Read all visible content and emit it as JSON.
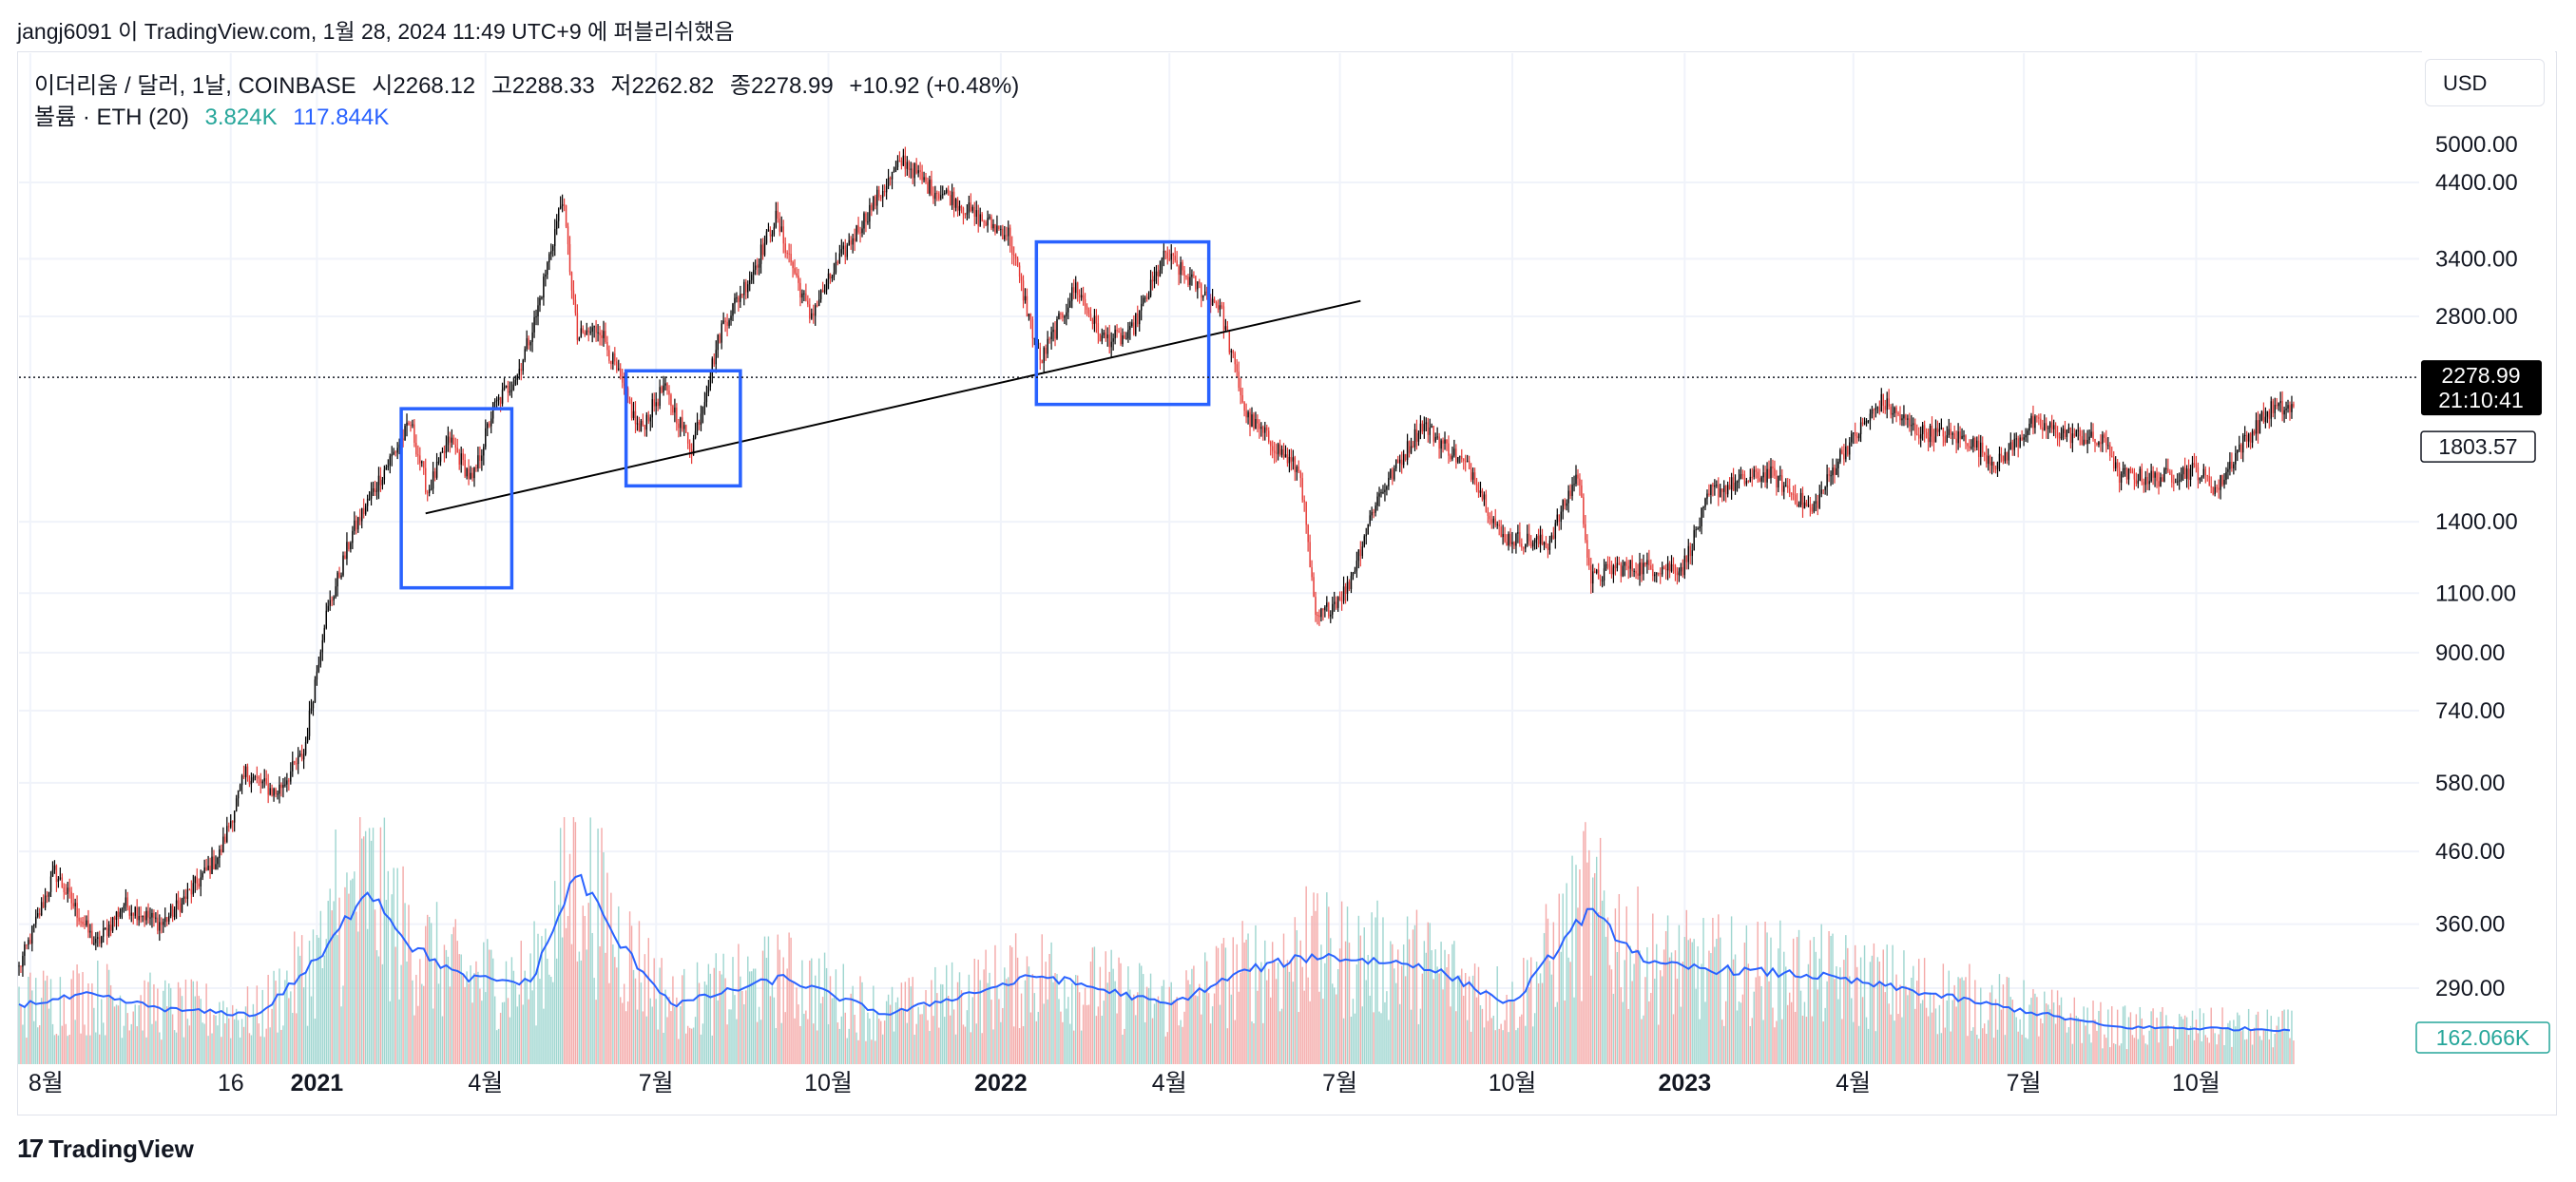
{
  "header": {
    "text": "jangj6091 이 TradingView.com, 1월 28, 2024 11:49 UTC+9 에 퍼블리쉬했음"
  },
  "legend": {
    "symbol": "이더리움 / 달러, 1날, COINBASE",
    "open_label": "시",
    "open": "2268.12",
    "high_label": "고",
    "high": "2288.33",
    "low_label": "저",
    "low": "2262.82",
    "close_label": "종",
    "close": "2278.99",
    "change": "+10.92 (+0.48%)",
    "volume_label": "볼륨 · ETH (20)",
    "volume": "3.824K",
    "volume_ma": "117.844K"
  },
  "currency_button": "USD",
  "footer": {
    "brand": "TradingView",
    "logo_icon": "tradingview-logo-icon"
  },
  "price_badge": {
    "value": "2278.99",
    "countdown": "21:10:41"
  },
  "marker_badge": {
    "value": "1803.57"
  },
  "volume_badge": {
    "value": "162.066K"
  },
  "colors": {
    "up": "#26a69a",
    "down": "#ef5350",
    "candle_up": "#000000",
    "candle_down": "#e53935",
    "volume_up": "#9fd6d0",
    "volume_down": "#f4aaa9",
    "ma": "#2962ff",
    "box": "#2962ff",
    "trendline": "#000000"
  },
  "chart_data": {
    "type": "candlestick",
    "symbol": "ETH/USD",
    "scale": "log",
    "y_ticks": [
      4400,
      3400,
      2800,
      1400,
      1100,
      900,
      740,
      580,
      460,
      360,
      290
    ],
    "y_tick_labels": [
      "4400.00",
      "3400.00",
      "2800.00",
      "1400.00",
      "1100.00",
      "900.00",
      "740.00",
      "580.00",
      "460.00",
      "360.00",
      "290.00"
    ],
    "x_ticks": [
      {
        "label": "8월",
        "date": "2020-08-01",
        "bold": false
      },
      {
        "label": "16",
        "date": "2020-11-16",
        "bold": false
      },
      {
        "label": "2021",
        "date": "2021-01-01",
        "bold": true
      },
      {
        "label": "4월",
        "date": "2021-04-01",
        "bold": false
      },
      {
        "label": "7월",
        "date": "2021-07-01",
        "bold": false
      },
      {
        "label": "10월",
        "date": "2021-10-01",
        "bold": false
      },
      {
        "label": "2022",
        "date": "2022-01-01",
        "bold": true
      },
      {
        "label": "4월",
        "date": "2022-04-01",
        "bold": false
      },
      {
        "label": "7월",
        "date": "2022-07-01",
        "bold": false
      },
      {
        "label": "10월",
        "date": "2022-10-01",
        "bold": false
      },
      {
        "label": "2023",
        "date": "2023-01-01",
        "bold": true
      },
      {
        "label": "4월",
        "date": "2023-04-01",
        "bold": false
      },
      {
        "label": "7월",
        "date": "2023-07-01",
        "bold": false
      },
      {
        "label": "10월",
        "date": "2023-10-01",
        "bold": false
      }
    ],
    "price_path": [
      [
        "2020-07-26",
        310
      ],
      [
        "2020-08-14",
        430
      ],
      [
        "2020-09-05",
        335
      ],
      [
        "2020-09-20",
        385
      ],
      [
        "2020-10-10",
        360
      ],
      [
        "2020-10-25",
        400
      ],
      [
        "2020-11-10",
        455
      ],
      [
        "2020-11-24",
        600
      ],
      [
        "2020-12-10",
        560
      ],
      [
        "2020-12-25",
        640
      ],
      [
        "2021-01-05",
        1000
      ],
      [
        "2021-01-12",
        1150
      ],
      [
        "2021-01-20",
        1350
      ],
      [
        "2021-02-05",
        1650
      ],
      [
        "2021-02-20",
        1950
      ],
      [
        "2021-03-01",
        1550
      ],
      [
        "2021-03-13",
        1850
      ],
      [
        "2021-03-25",
        1600
      ],
      [
        "2021-04-05",
        2050
      ],
      [
        "2021-04-18",
        2300
      ],
      [
        "2021-04-28",
        2800
      ],
      [
        "2021-05-12",
        4200
      ],
      [
        "2021-05-20",
        2600
      ],
      [
        "2021-06-01",
        2700
      ],
      [
        "2021-06-22",
        1900
      ],
      [
        "2021-07-05",
        2200
      ],
      [
        "2021-07-20",
        1800
      ],
      [
        "2021-08-05",
        2700
      ],
      [
        "2021-08-20",
        3200
      ],
      [
        "2021-09-03",
        3900
      ],
      [
        "2021-09-21",
        2800
      ],
      [
        "2021-10-10",
        3500
      ],
      [
        "2021-10-25",
        4100
      ],
      [
        "2021-11-10",
        4750
      ],
      [
        "2021-11-25",
        4300
      ],
      [
        "2021-12-05",
        4200
      ],
      [
        "2021-12-20",
        3900
      ],
      [
        "2022-01-05",
        3700
      ],
      [
        "2022-01-22",
        2400
      ],
      [
        "2022-02-10",
        3100
      ],
      [
        "2022-02-24",
        2600
      ],
      [
        "2022-03-10",
        2600
      ],
      [
        "2022-03-30",
        3450
      ],
      [
        "2022-04-10",
        3200
      ],
      [
        "2022-04-28",
        2900
      ],
      [
        "2022-05-12",
        2000
      ],
      [
        "2022-05-28",
        1800
      ],
      [
        "2022-06-10",
        1650
      ],
      [
        "2022-06-18",
        1000
      ],
      [
        "2022-07-05",
        1120
      ],
      [
        "2022-07-20",
        1500
      ],
      [
        "2022-08-14",
        1950
      ],
      [
        "2022-09-10",
        1650
      ],
      [
        "2022-09-25",
        1330
      ],
      [
        "2022-10-20",
        1300
      ],
      [
        "2022-11-05",
        1650
      ],
      [
        "2022-11-12",
        1150
      ],
      [
        "2022-11-25",
        1200
      ],
      [
        "2022-12-15",
        1200
      ],
      [
        "2022-12-31",
        1200
      ],
      [
        "2023-01-15",
        1550
      ],
      [
        "2023-02-15",
        1650
      ],
      [
        "2023-03-10",
        1450
      ],
      [
        "2023-03-25",
        1750
      ],
      [
        "2023-04-16",
        2100
      ],
      [
        "2023-05-05",
        1900
      ],
      [
        "2023-06-01",
        1850
      ],
      [
        "2023-06-17",
        1700
      ],
      [
        "2023-07-05",
        1950
      ],
      [
        "2023-07-25",
        1880
      ],
      [
        "2023-08-15",
        1820
      ],
      [
        "2023-08-20",
        1640
      ],
      [
        "2023-09-10",
        1620
      ],
      [
        "2023-10-01",
        1670
      ],
      [
        "2023-10-12",
        1560
      ],
      [
        "2023-10-24",
        1800
      ],
      [
        "2023-11-10",
        2050
      ],
      [
        "2023-11-22",
        2050
      ]
    ],
    "current_price": 2278.99,
    "marker_price": 1803.57,
    "trendline": [
      [
        "2021-02-28",
        1440
      ],
      [
        "2022-07-12",
        2950
      ]
    ],
    "boxes": [
      {
        "from": "2021-02-15",
        "to": "2021-04-15",
        "price_high": 2050,
        "price_low": 1120
      },
      {
        "from": "2021-06-15",
        "to": "2021-08-15",
        "price_high": 2330,
        "price_low": 1580
      },
      {
        "from": "2022-01-20",
        "to": "2022-04-22",
        "price_high": 3600,
        "price_low": 2080
      }
    ],
    "volume": {
      "unit": "ETH",
      "ma_length": 20,
      "ma_path": [
        [
          "2020-07-26",
          0.24
        ],
        [
          "2020-09-01",
          0.28
        ],
        [
          "2020-10-15",
          0.22
        ],
        [
          "2020-12-01",
          0.2
        ],
        [
          "2021-01-05",
          0.45
        ],
        [
          "2021-01-28",
          0.72
        ],
        [
          "2021-02-20",
          0.48
        ],
        [
          "2021-03-20",
          0.35
        ],
        [
          "2021-04-25",
          0.33
        ],
        [
          "2021-05-20",
          0.78
        ],
        [
          "2021-06-10",
          0.5
        ],
        [
          "2021-07-10",
          0.24
        ],
        [
          "2021-09-07",
          0.35
        ],
        [
          "2021-11-01",
          0.2
        ],
        [
          "2022-01-22",
          0.36
        ],
        [
          "2022-04-01",
          0.24
        ],
        [
          "2022-05-12",
          0.38
        ],
        [
          "2022-06-18",
          0.44
        ],
        [
          "2022-08-15",
          0.4
        ],
        [
          "2022-10-01",
          0.24
        ],
        [
          "2022-11-10",
          0.62
        ],
        [
          "2022-12-15",
          0.4
        ],
        [
          "2023-03-10",
          0.36
        ],
        [
          "2023-05-01",
          0.3
        ],
        [
          "2023-08-18",
          0.15
        ],
        [
          "2023-11-22",
          0.14
        ]
      ],
      "spikes": [
        [
          "2021-01-11",
          0.95
        ],
        [
          "2021-01-21",
          0.78
        ],
        [
          "2021-05-19",
          0.98
        ],
        [
          "2021-05-24",
          0.6
        ],
        [
          "2022-05-10",
          0.58
        ],
        [
          "2022-06-13",
          0.72
        ],
        [
          "2022-06-18",
          0.62
        ],
        [
          "2022-11-09",
          0.98
        ]
      ]
    }
  }
}
